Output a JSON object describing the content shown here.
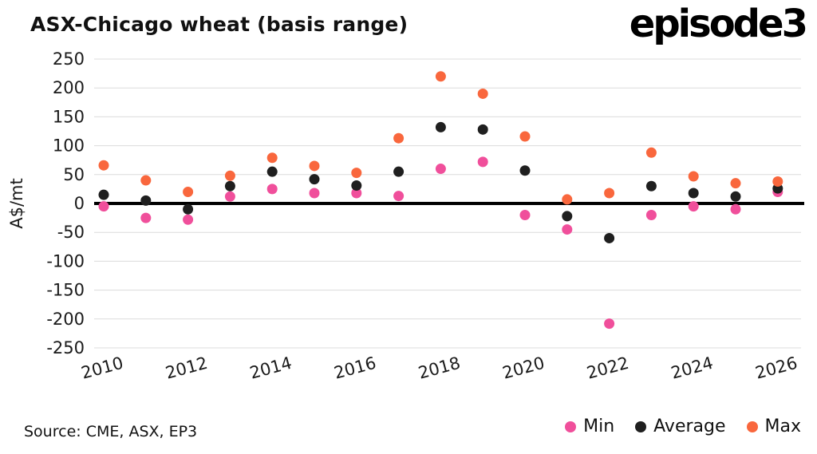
{
  "title": "ASX-Chicago wheat (basis range)",
  "logo_text": "episode3",
  "source": "Source: CME, ASX, EP3",
  "legend": [
    {
      "label": "Min",
      "color": "#f04f9b"
    },
    {
      "label": "Average",
      "color": "#1f1f1f"
    },
    {
      "label": "Max",
      "color": "#f9673d"
    }
  ],
  "chart_data": {
    "type": "scatter",
    "title": "ASX-Chicago wheat (basis range)",
    "xlabel": "",
    "ylabel": "A$/mt",
    "ylim": [
      -250,
      250
    ],
    "yticks": [
      250,
      200,
      150,
      100,
      50,
      0,
      -50,
      -100,
      -150,
      -200,
      -250
    ],
    "x": [
      2010,
      2011,
      2012,
      2013,
      2014,
      2015,
      2016,
      2017,
      2018,
      2019,
      2020,
      2021,
      2022,
      2023,
      2024,
      2025,
      2026
    ],
    "xtick_labels": [
      "2010",
      "2012",
      "2014",
      "2016",
      "2018",
      "2020",
      "2022",
      "2024",
      "2026"
    ],
    "grid": "horizontal",
    "legend_position": "bottom-right",
    "series": [
      {
        "name": "Min",
        "color": "#f04f9b",
        "values": [
          -5,
          -25,
          -28,
          12,
          25,
          18,
          18,
          13,
          60,
          72,
          -20,
          -45,
          -208,
          -20,
          -5,
          -10,
          20
        ]
      },
      {
        "name": "Average",
        "color": "#1f1f1f",
        "values": [
          15,
          5,
          -10,
          30,
          55,
          42,
          31,
          55,
          132,
          128,
          57,
          -22,
          -60,
          30,
          18,
          12,
          26
        ]
      },
      {
        "name": "Max",
        "color": "#f9673d",
        "values": [
          66,
          40,
          20,
          48,
          79,
          65,
          53,
          113,
          220,
          190,
          116,
          7,
          18,
          88,
          47,
          35,
          38
        ]
      }
    ]
  }
}
